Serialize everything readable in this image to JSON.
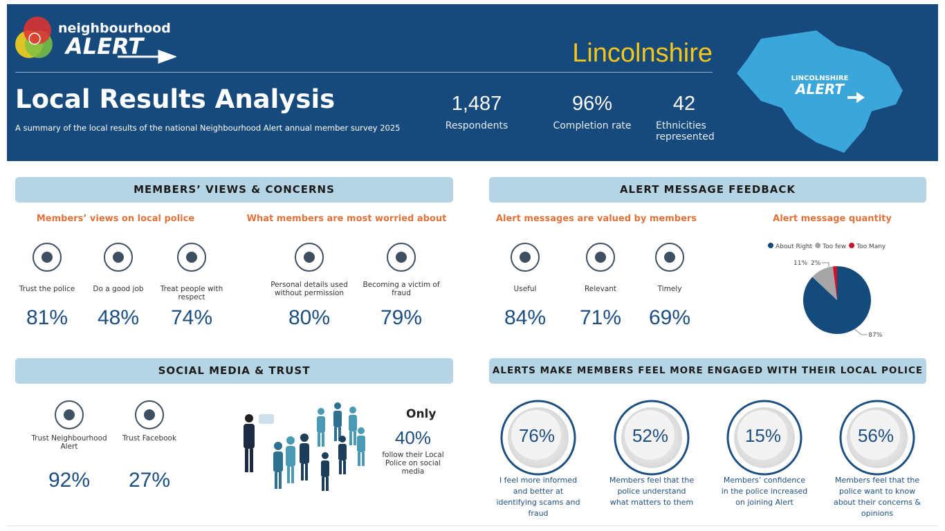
{
  "header": {
    "logo_top": "neighbourhood",
    "logo_main": "ALERT",
    "region": "Lincolnshire",
    "title": "Local Results Analysis",
    "subtitle": "A summary of the local results of the national Neighbourhood Alert annual member survey 2025",
    "stats": [
      {
        "value": "1,487",
        "label": "Respondents"
      },
      {
        "value": "96%",
        "label": "Completion rate"
      },
      {
        "value": "42",
        "label": "Ethnicities represented"
      }
    ],
    "map_logo": [
      "LINCOLNSHIRE",
      "ALERT"
    ]
  },
  "views": {
    "heading": "MEMBERS’ VIEWS & CONCERNS",
    "police": {
      "title": "Members’ views on local police",
      "items": [
        {
          "label": "Trust the police",
          "value": "81%"
        },
        {
          "label": "Do a good job",
          "value": "48%"
        },
        {
          "label": "Treat people with respect",
          "value": "74%"
        }
      ]
    },
    "worries": {
      "title": "What members are most worried about",
      "items": [
        {
          "label": "Personal details used without permission",
          "value": "80%"
        },
        {
          "label": "Becoming a victim of fraud",
          "value": "79%"
        }
      ]
    }
  },
  "feedback": {
    "heading": "ALERT MESSAGE FEEDBACK",
    "valued": {
      "title": "Alert messages are valued by members",
      "items": [
        {
          "label": "Useful",
          "value": "84%"
        },
        {
          "label": "Relevant",
          "value": "71%"
        },
        {
          "label": "Timely",
          "value": "69%"
        }
      ]
    }
  },
  "chart_data": {
    "type": "pie",
    "title": "Alert message quantity",
    "categories": [
      "About Right",
      "Too few",
      "Too Many"
    ],
    "values": [
      87,
      11,
      2
    ],
    "value_labels": [
      "87%",
      "11%",
      "2%"
    ],
    "colors": [
      "#144a7c",
      "#a6a6a6",
      "#d0112b"
    ],
    "legend": "top"
  },
  "social": {
    "heading": "SOCIAL MEDIA & TRUST",
    "items": [
      {
        "label": "Trust Neighbourhood Alert",
        "value": "92%"
      },
      {
        "label": "Trust Facebook",
        "value": "27%"
      }
    ],
    "only": "Only",
    "follow_value": "40%",
    "follow_label": "follow their Local Police on social media"
  },
  "engaged": {
    "heading": "ALERTS MAKE MEMBERS FEEL MORE ENGAGED WITH THEIR LOCAL POLICE",
    "items": [
      {
        "value": "76%",
        "label": "I feel more informed and better at identifying scams and fraud"
      },
      {
        "value": "52%",
        "label": "Members feel that the police understand what matters to them"
      },
      {
        "value": "15%",
        "label": "Members’ confidence in the police increased on joining Alert"
      },
      {
        "value": "56%",
        "label": "Members feel that the police want to know about their concerns & opinions"
      }
    ]
  }
}
